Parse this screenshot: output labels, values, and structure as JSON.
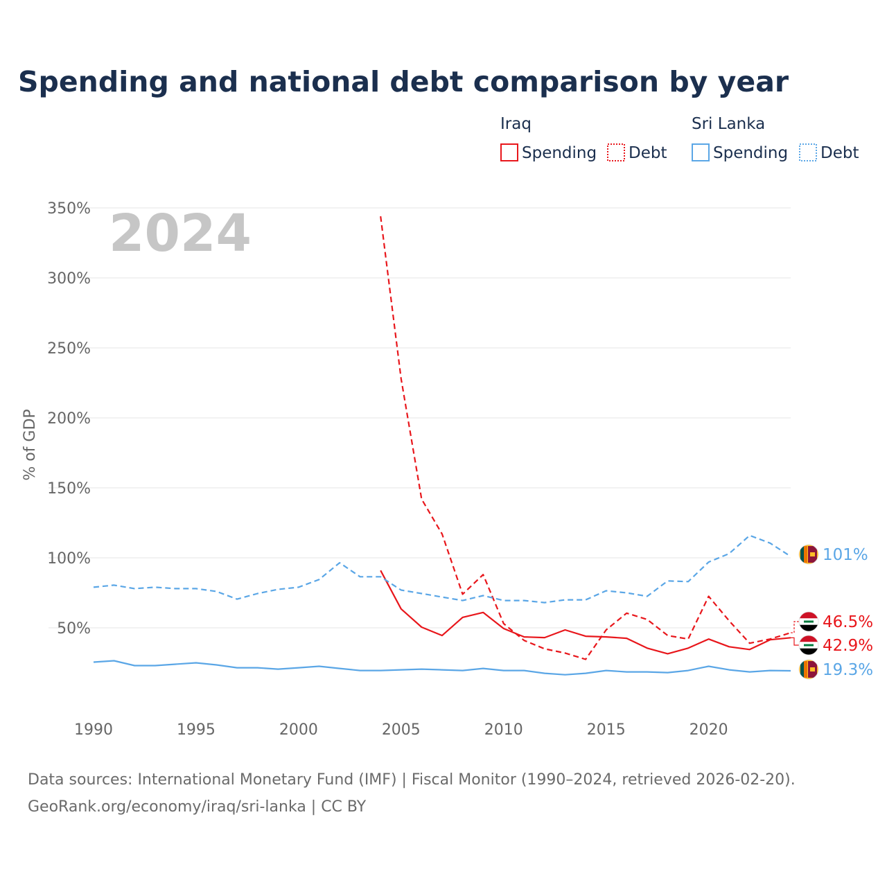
{
  "chart_data": {
    "type": "line",
    "title": "Spending and national debt comparison by year",
    "ylabel": "% of GDP",
    "xlabel": "",
    "xlim": [
      1990,
      2024
    ],
    "ylim": [
      0,
      350
    ],
    "x_ticks": [
      1990,
      1995,
      2000,
      2005,
      2010,
      2015,
      2020
    ],
    "y_ticks": [
      50,
      100,
      150,
      200,
      250,
      300,
      350
    ],
    "y_tick_labels": [
      "50%",
      "100%",
      "150%",
      "200%",
      "250%",
      "300%",
      "350%"
    ],
    "x_tick_labels": [
      "1990",
      "1995",
      "2000",
      "2005",
      "2010",
      "2015",
      "2020"
    ],
    "year_watermark": "2024",
    "legend": {
      "groups": [
        {
          "country": "Iraq",
          "items": [
            "Spending",
            "Debt"
          ]
        },
        {
          "country": "Sri Lanka",
          "items": [
            "Spending",
            "Debt"
          ]
        }
      ]
    },
    "series": [
      {
        "name": "Iraq Spending",
        "country": "Iraq",
        "metric": "Spending",
        "color": "#e8161b",
        "style": "solid",
        "end_label": "42.9%",
        "points": [
          [
            2004,
            91
          ],
          [
            2005,
            63.5
          ],
          [
            2006,
            50.5
          ],
          [
            2007,
            44.5
          ],
          [
            2008,
            57.5
          ],
          [
            2009,
            61
          ],
          [
            2010,
            49.5
          ],
          [
            2011,
            43.5
          ],
          [
            2012,
            43
          ],
          [
            2013,
            48.5
          ],
          [
            2014,
            44
          ],
          [
            2015,
            43.5
          ],
          [
            2016,
            42.5
          ],
          [
            2017,
            35.5
          ],
          [
            2018,
            31.5
          ],
          [
            2019,
            35.5
          ],
          [
            2020,
            42
          ],
          [
            2021,
            36.5
          ],
          [
            2022,
            34.5
          ],
          [
            2023,
            41.5
          ],
          [
            2024,
            42.9
          ]
        ]
      },
      {
        "name": "Iraq Debt",
        "country": "Iraq",
        "metric": "Debt",
        "color": "#e8161b",
        "style": "dashed",
        "end_label": "46.5%",
        "points": [
          [
            2004,
            344
          ],
          [
            2005,
            228
          ],
          [
            2006,
            142
          ],
          [
            2007,
            117
          ],
          [
            2008,
            74
          ],
          [
            2009,
            88
          ],
          [
            2010,
            53
          ],
          [
            2011,
            41
          ],
          [
            2012,
            35
          ],
          [
            2013,
            32
          ],
          [
            2014,
            27.5
          ],
          [
            2015,
            48.5
          ],
          [
            2016,
            60.5
          ],
          [
            2017,
            56
          ],
          [
            2018,
            44.5
          ],
          [
            2019,
            42
          ],
          [
            2020,
            72.5
          ],
          [
            2021,
            55
          ],
          [
            2022,
            39
          ],
          [
            2023,
            42
          ],
          [
            2024,
            46.5
          ]
        ]
      },
      {
        "name": "Sri Lanka Spending",
        "country": "Sri Lanka",
        "metric": "Spending",
        "color": "#5aa6e6",
        "style": "solid",
        "end_label": "19.3%",
        "points": [
          [
            1990,
            25.5
          ],
          [
            1991,
            26.5
          ],
          [
            1992,
            23
          ],
          [
            1993,
            23
          ],
          [
            1994,
            24
          ],
          [
            1995,
            25
          ],
          [
            1996,
            23.5
          ],
          [
            1997,
            21.5
          ],
          [
            1998,
            21.5
          ],
          [
            1999,
            20.5
          ],
          [
            2000,
            21.5
          ],
          [
            2001,
            22.5
          ],
          [
            2002,
            21
          ],
          [
            2003,
            19.5
          ],
          [
            2004,
            19.5
          ],
          [
            2005,
            20
          ],
          [
            2006,
            20.5
          ],
          [
            2007,
            20
          ],
          [
            2008,
            19.5
          ],
          [
            2009,
            21
          ],
          [
            2010,
            19.5
          ],
          [
            2011,
            19.5
          ],
          [
            2012,
            17.5
          ],
          [
            2013,
            16.5
          ],
          [
            2014,
            17.5
          ],
          [
            2015,
            19.5
          ],
          [
            2016,
            18.5
          ],
          [
            2017,
            18.5
          ],
          [
            2018,
            18
          ],
          [
            2019,
            19.5
          ],
          [
            2020,
            22.5
          ],
          [
            2021,
            20
          ],
          [
            2022,
            18.5
          ],
          [
            2023,
            19.5
          ],
          [
            2024,
            19.3
          ]
        ]
      },
      {
        "name": "Sri Lanka Debt",
        "country": "Sri Lanka",
        "metric": "Debt",
        "color": "#5aa6e6",
        "style": "dashed",
        "end_label": "101%",
        "points": [
          [
            1990,
            79
          ],
          [
            1991,
            80.5
          ],
          [
            1992,
            78
          ],
          [
            1993,
            79
          ],
          [
            1994,
            78
          ],
          [
            1995,
            78
          ],
          [
            1996,
            76
          ],
          [
            1997,
            70.5
          ],
          [
            1998,
            74.5
          ],
          [
            1999,
            77.5
          ],
          [
            2000,
            79
          ],
          [
            2001,
            84.5
          ],
          [
            2002,
            96.5
          ],
          [
            2003,
            86.5
          ],
          [
            2004,
            86.5
          ],
          [
            2005,
            77
          ],
          [
            2006,
            74.5
          ],
          [
            2007,
            72
          ],
          [
            2008,
            69.5
          ],
          [
            2009,
            73
          ],
          [
            2010,
            69.5
          ],
          [
            2011,
            69.5
          ],
          [
            2012,
            68
          ],
          [
            2013,
            70
          ],
          [
            2014,
            70
          ],
          [
            2015,
            76.5
          ],
          [
            2016,
            75
          ],
          [
            2017,
            72.5
          ],
          [
            2018,
            83.5
          ],
          [
            2019,
            83
          ],
          [
            2020,
            97
          ],
          [
            2021,
            103
          ],
          [
            2022,
            116
          ],
          [
            2023,
            110.5
          ],
          [
            2024,
            101
          ]
        ]
      }
    ]
  },
  "source": {
    "line1": "Data sources: International Monetary Fund (IMF) | Fiscal Monitor (1990–2024, retrieved 2026-02-20).",
    "line2": "GeoRank.org/economy/iraq/sri-lanka | CC BY"
  },
  "colors": {
    "iraq": "#e8161b",
    "sri_lanka": "#5aa6e6",
    "title": "#1b2f4e",
    "axis_text": "#666666"
  }
}
